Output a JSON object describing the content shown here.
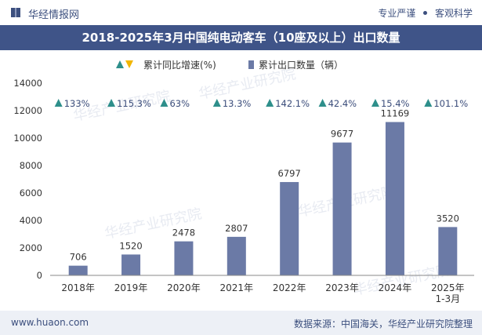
{
  "header": {
    "brand": "华经情报网",
    "tagline_left": "专业严谨",
    "tagline_right": "客观科学"
  },
  "title": "2018-2025年3月中国纯电动客车（10座及以上）出口数量",
  "legend": {
    "growth_label": "累计同比增速(%)",
    "volume_label": "累计出口数量（辆）"
  },
  "footer": {
    "url": "www.huaon.com",
    "source": "数据来源：中国海关，华经产业研究院整理"
  },
  "watermark": "华经产业研究院",
  "colors": {
    "bar": "#6b7aa6",
    "title_bg": "#3f5488",
    "up_arrow": "#2e8f8b",
    "down_arrow": "#f2b600",
    "text": "#333333"
  },
  "chart_data": {
    "type": "bar",
    "title": "2018-2025年3月中国纯电动客车（10座及以上）出口数量",
    "categories": [
      "2018年",
      "2019年",
      "2020年",
      "2021年",
      "2022年",
      "2023年",
      "2024年",
      "2025年\n1-3月"
    ],
    "series": [
      {
        "name": "累计出口数量（辆）",
        "values": [
          706,
          1520,
          2478,
          2807,
          6797,
          9677,
          11169,
          3520
        ]
      },
      {
        "name": "累计同比增速(%)",
        "values": [
          133,
          115.3,
          63,
          13.3,
          142.1,
          42.4,
          15.4,
          101.1
        ],
        "labels": [
          "133%",
          "115.3%",
          "63%",
          "13.3%",
          "142.1%",
          "42.4%",
          "15.4%",
          "101.1%"
        ]
      }
    ],
    "ylim": [
      0,
      14000
    ],
    "yticks": [
      0,
      2000,
      4000,
      6000,
      8000,
      10000,
      12000,
      14000
    ],
    "xlabel": "",
    "ylabel": "",
    "grid": false,
    "legend_position": "top-center"
  }
}
